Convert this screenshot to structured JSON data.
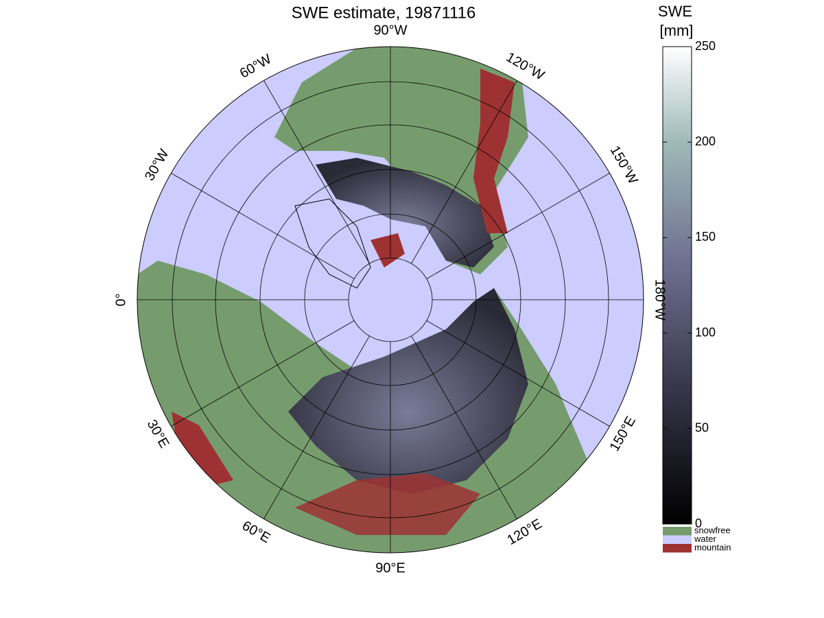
{
  "title": "SWE estimate, 19871116",
  "longitude_labels": [
    "90°W",
    "120°W",
    "150°W",
    "180°W",
    "150°E",
    "120°E",
    "90°E",
    "60°E",
    "30°E",
    "0°",
    "30°W",
    "60°W"
  ],
  "colorbar": {
    "title": [
      "SWE",
      "[mm]"
    ],
    "lim": [
      0,
      250
    ],
    "ticks": [
      0,
      50,
      100,
      150,
      200,
      250
    ]
  },
  "legend": [
    {
      "label": "snowfree",
      "color": "#769c6e"
    },
    {
      "label": "water",
      "color": "#ccccff"
    },
    {
      "label": "mountain",
      "color": "#9e3232"
    }
  ]
}
